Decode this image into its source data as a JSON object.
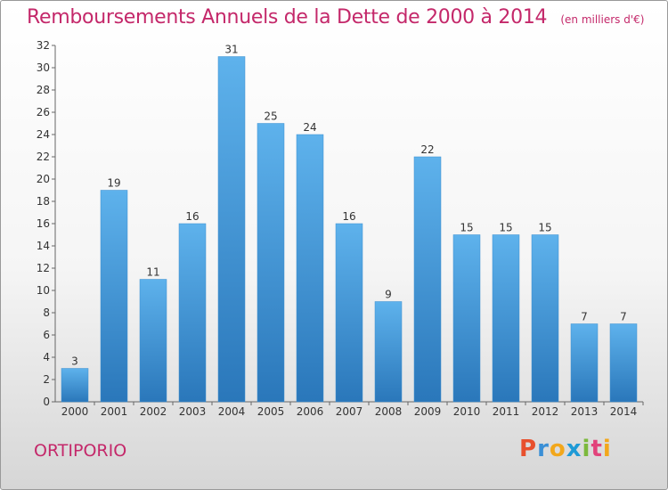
{
  "chart_data": {
    "type": "bar",
    "title": "Remboursements Annuels de la Dette de 2000 à 2014",
    "unit": "(en milliers d'€)",
    "categories": [
      "2000",
      "2001",
      "2002",
      "2003",
      "2004",
      "2005",
      "2006",
      "2007",
      "2008",
      "2009",
      "2010",
      "2011",
      "2012",
      "2013",
      "2014"
    ],
    "values": [
      3,
      19,
      11,
      16,
      31,
      25,
      24,
      16,
      9,
      22,
      15,
      15,
      15,
      7,
      7
    ],
    "ylim": [
      0,
      32
    ],
    "yticks": [
      0,
      2,
      4,
      6,
      8,
      10,
      12,
      14,
      16,
      18,
      20,
      22,
      24,
      26,
      28,
      30,
      32
    ],
    "grid": false,
    "xlabel": "",
    "ylabel": ""
  },
  "commune": "ORTIPORIO",
  "logo": {
    "text": "Proxiti",
    "colors": [
      "#e8502d",
      "#3a8fd6",
      "#f2a71b",
      "#1e9ad6",
      "#7cb93d",
      "#e2437b",
      "#f2a71b"
    ]
  },
  "colors": {
    "title": "#c4286a",
    "bar_top": "#5eb2ec",
    "bar_bottom": "#2a77ba"
  }
}
